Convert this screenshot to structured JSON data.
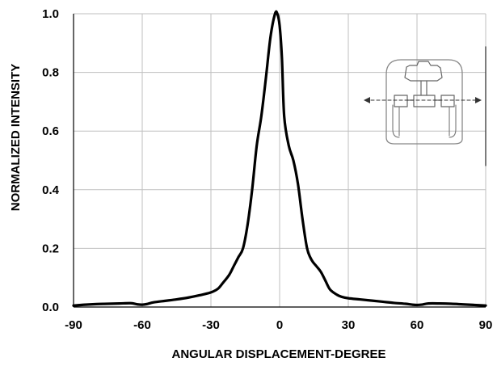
{
  "chart_data": {
    "type": "line",
    "title": "",
    "xlabel": "ANGULAR DISPLACEMENT-DEGREE",
    "ylabel": "NORMALIZED INTENSITY",
    "xlim": [
      -90,
      90
    ],
    "ylim": [
      0,
      1.0
    ],
    "grid": true,
    "x_ticks": [
      "-90",
      "-60",
      "-30",
      "0",
      "30",
      "60",
      "90"
    ],
    "y_ticks": [
      "0.0",
      "0.2",
      "0.4",
      "0.6",
      "0.8",
      "1.0"
    ],
    "line_color": "#000000",
    "grid_color": "#bfbfbf",
    "series": [
      {
        "x": [
          -90,
          -85,
          -80,
          -75,
          -70,
          -65,
          -62,
          -60,
          -58,
          -55,
          -50,
          -45,
          -40,
          -35,
          -30,
          -27,
          -25,
          -22,
          -20,
          -18,
          -16,
          -14,
          -12,
          -10,
          -8,
          -6,
          -4,
          -2,
          -1,
          0,
          1,
          2,
          4,
          6,
          8,
          10,
          12,
          14,
          16,
          18,
          20,
          22,
          25,
          27,
          30,
          35,
          40,
          45,
          50,
          55,
          58,
          60,
          62,
          65,
          70,
          75,
          80,
          85,
          90
        ],
        "y": [
          0.005,
          0.008,
          0.01,
          0.011,
          0.012,
          0.013,
          0.009,
          0.008,
          0.01,
          0.016,
          0.021,
          0.026,
          0.032,
          0.04,
          0.05,
          0.062,
          0.08,
          0.11,
          0.14,
          0.17,
          0.2,
          0.28,
          0.4,
          0.55,
          0.65,
          0.78,
          0.92,
          1.0,
          1.0,
          0.96,
          0.85,
          0.65,
          0.55,
          0.5,
          0.42,
          0.3,
          0.2,
          0.16,
          0.14,
          0.12,
          0.09,
          0.06,
          0.042,
          0.035,
          0.03,
          0.026,
          0.022,
          0.018,
          0.014,
          0.011,
          0.008,
          0.007,
          0.008,
          0.012,
          0.012,
          0.011,
          0.009,
          0.007,
          0.005
        ]
      }
    ]
  },
  "inset": {
    "icon": "lamp-reflector-diagram-icon",
    "stroke_color": "#777777",
    "arrow_color": "#333333"
  }
}
